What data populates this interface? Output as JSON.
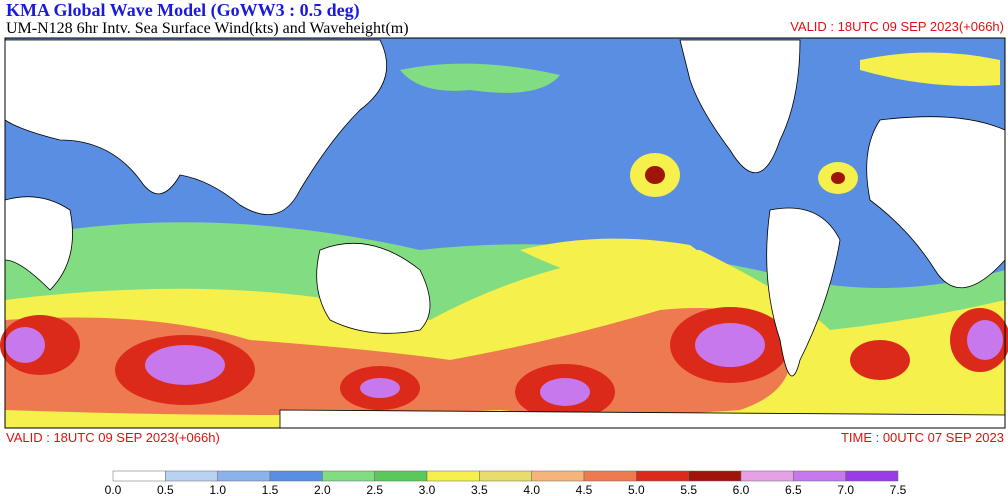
{
  "header": {
    "title": "KMA  Global Wave Model (GoWW3 : 0.5 deg)",
    "subtitle": "UM-N128  6hr Intv. Sea Surface Wind(kts) and Waveheight(m)",
    "valid_top": "VALID : 18UTC 09 SEP 2023(+066h)"
  },
  "footer": {
    "valid": "VALID : 18UTC 09 SEP 2023(+066h)",
    "time": "TIME : 00UTC 07 SEP 2023"
  },
  "colorbar": {
    "labels": [
      "0.0",
      "0.5",
      "1.0",
      "1.5",
      "2.0",
      "2.5",
      "3.0",
      "3.5",
      "4.0",
      "4.5",
      "5.0",
      "5.5",
      "6.0",
      "6.5",
      "7.0",
      "7.5"
    ],
    "colors": [
      "#ffffff",
      "#b8d2f2",
      "#8cb2ec",
      "#5a8ee2",
      "#82dc82",
      "#5ac85a",
      "#f5f04c",
      "#e8dc6a",
      "#f5b478",
      "#ee7a50",
      "#dc2a1a",
      "#a0140a",
      "#e6a0e6",
      "#c678ec",
      "#9a3ce6"
    ]
  }
}
